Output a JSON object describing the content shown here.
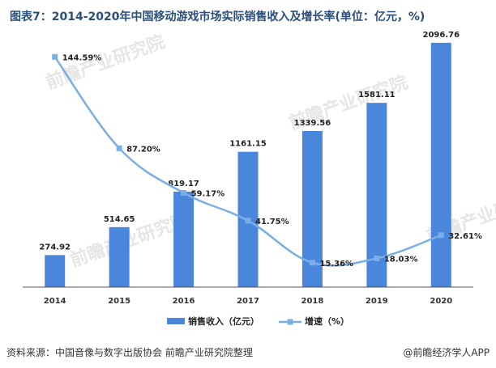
{
  "title": "图表7：2014-2020年中国移动游戏市场实际销售收入及增长率(单位：亿元，%)",
  "source_text": "资料来源：中国音像与数字出版协会 前瞻产业研究院整理",
  "brand_text": "@前瞻经济学人APP",
  "colors": {
    "bar": "#4a86db",
    "line": "#7aaee6",
    "axis": "#555555",
    "title": "#2b4f7a",
    "watermark": "#e6e6e6"
  },
  "watermark": {
    "text": "前瞻产业研究院"
  },
  "chart_data": {
    "type": "bar+line",
    "categories": [
      "2014",
      "2015",
      "2016",
      "2017",
      "2018",
      "2019",
      "2020"
    ],
    "series": [
      {
        "name": "销售收入（亿元）",
        "type": "bar",
        "values": [
          274.92,
          514.65,
          819.17,
          1161.15,
          1339.56,
          1581.11,
          2096.76
        ],
        "labels": [
          "274.92",
          "514.65",
          "819.17",
          "1161.15",
          "1339.56",
          "1581.11",
          "2096.76"
        ],
        "ylim": [
          0,
          2200
        ]
      },
      {
        "name": "增速（%）",
        "type": "line",
        "values": [
          144.59,
          87.2,
          59.17,
          41.75,
          15.36,
          18.03,
          32.61
        ],
        "labels": [
          "144.59%",
          "87.20%",
          "59.17%",
          "41.75%",
          "15.36%",
          "18.03%",
          "32.61%"
        ],
        "ylim": [
          0,
          160
        ]
      }
    ],
    "legend": {
      "placement": "bottom",
      "entries": [
        "销售收入（亿元）",
        "增速（%）"
      ]
    },
    "grid": false
  }
}
